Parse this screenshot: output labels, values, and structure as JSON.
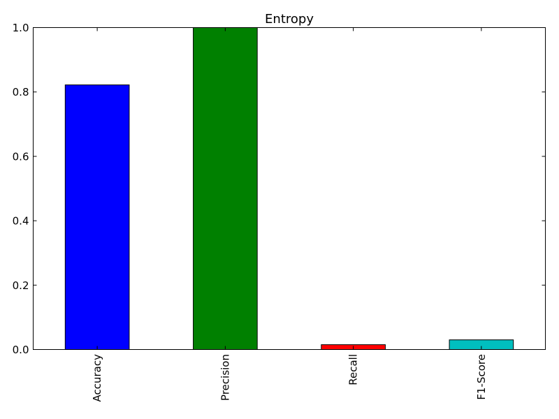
{
  "chart_data": {
    "type": "bar",
    "title": "Entropy",
    "categories": [
      "Accuracy",
      "Precision",
      "Recall",
      "F1-Score"
    ],
    "values": [
      0.822,
      1.0,
      0.015,
      0.03
    ],
    "colors": [
      "#0000ff",
      "#008000",
      "#ff0000",
      "#00bfbf"
    ],
    "ylim": [
      0,
      1.0
    ],
    "yticks": [
      0.0,
      0.2,
      0.4,
      0.6,
      0.8,
      1.0
    ],
    "ytick_labels": [
      "0.0",
      "0.2",
      "0.4",
      "0.6",
      "0.8",
      "1.0"
    ],
    "xlabel": "",
    "ylabel": "",
    "grid": false,
    "legend": false
  }
}
